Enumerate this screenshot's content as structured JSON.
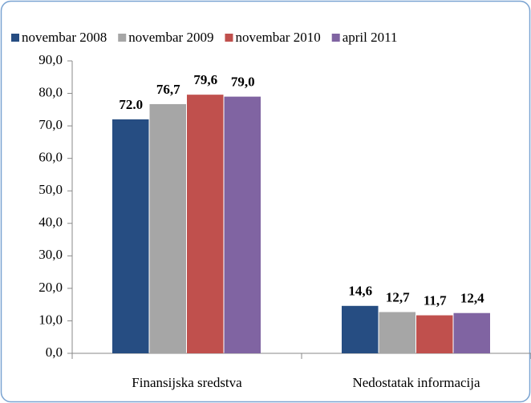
{
  "chart_data": {
    "type": "bar",
    "categories": [
      "Finansijska sredstva",
      "Nedostatak informacija"
    ],
    "series": [
      {
        "name": "novembar 2008",
        "color": "#264d82",
        "values": [
          72.0,
          14.6
        ],
        "value_labels": [
          "72.0",
          "14,6"
        ]
      },
      {
        "name": "novembar 2009",
        "color": "#a6a6a6",
        "values": [
          76.7,
          12.7
        ],
        "value_labels": [
          "76,7",
          "12,7"
        ]
      },
      {
        "name": "novembar 2010",
        "color": "#c0504d",
        "values": [
          79.6,
          11.7
        ],
        "value_labels": [
          "79,6",
          "11,7"
        ]
      },
      {
        "name": "april 2011",
        "color": "#8064a2",
        "values": [
          79.0,
          12.4
        ],
        "value_labels": [
          "79,0",
          "12,4"
        ]
      }
    ],
    "ylim": [
      0,
      90
    ],
    "yticks": [
      {
        "value": 0,
        "label": "0,0"
      },
      {
        "value": 10,
        "label": "10,0"
      },
      {
        "value": 20,
        "label": "20,0"
      },
      {
        "value": 30,
        "label": "30,0"
      },
      {
        "value": 40,
        "label": "40,0"
      },
      {
        "value": 50,
        "label": "50,0"
      },
      {
        "value": 60,
        "label": "60,0"
      },
      {
        "value": 70,
        "label": "70,0"
      },
      {
        "value": 80,
        "label": "80,0"
      },
      {
        "value": 90,
        "label": "90,0"
      }
    ],
    "legend": "top"
  }
}
